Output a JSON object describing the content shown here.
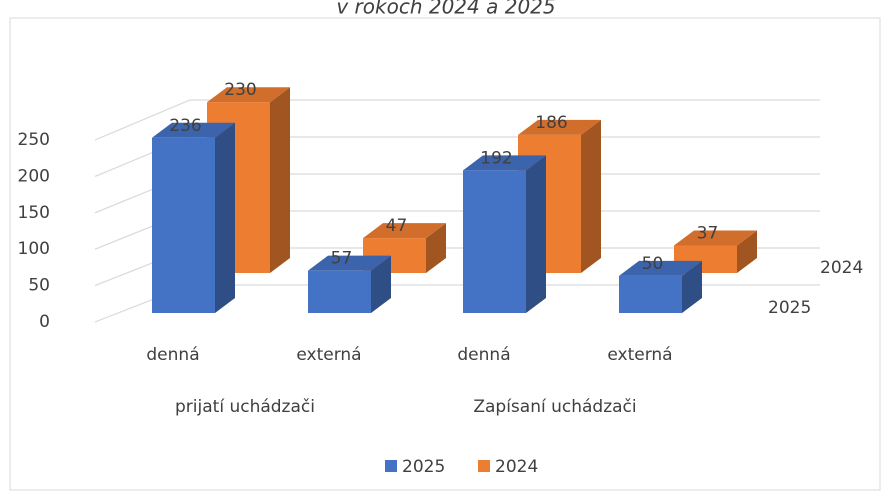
{
  "chart_data": {
    "type": "bar3d",
    "title": "v rokoch 2024 a 2025",
    "categories": [
      "denná",
      "externá",
      "denná",
      "externá"
    ],
    "groups": [
      "prijatí uchádzači",
      "Zapísaní uchádzači"
    ],
    "series": [
      {
        "name": "2025",
        "color": "#4472c4",
        "values": [
          236,
          57,
          192,
          50
        ]
      },
      {
        "name": "2024",
        "color": "#ed7d31",
        "values": [
          230,
          47,
          186,
          37
        ]
      }
    ],
    "ylim": [
      0,
      250
    ],
    "yticks": [
      0,
      50,
      100,
      150,
      200,
      250
    ],
    "grid": true,
    "legend": "bottom"
  }
}
